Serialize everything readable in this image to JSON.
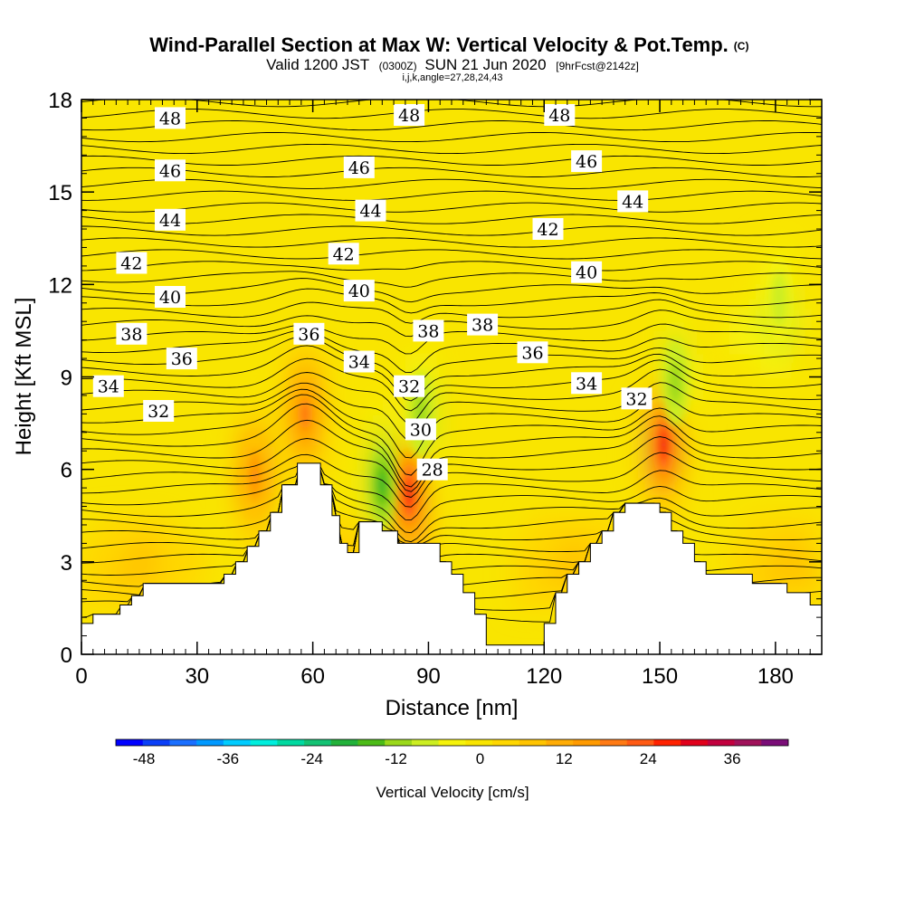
{
  "title": {
    "main": "Wind-Parallel Section at Max W: Vertical Velocity & Pot.Temp.",
    "copyright": "(C)",
    "valid_prefix": "Valid 1200 JST",
    "valid_utc": "(0300Z)",
    "valid_date": "SUN 21 Jun 2020",
    "forecast": "[9hrFcst@2142z]",
    "indices": "i,j,k,angle=27,28,24,43"
  },
  "chart_data": {
    "type": "heatmap",
    "xlabel": "Distance [nm]",
    "ylabel": "Height [Kft MSL]",
    "xlim": [
      0,
      192
    ],
    "ylim": [
      0,
      18
    ],
    "xticks": [
      0,
      30,
      60,
      90,
      120,
      150,
      180
    ],
    "yticks": [
      0,
      3,
      6,
      9,
      12,
      15,
      18
    ],
    "colorbar": {
      "title": "Vertical Velocity [cm/s]",
      "min": -52,
      "max": 44,
      "step": 4,
      "tick_values": [
        -48,
        -36,
        -24,
        -12,
        0,
        12,
        24,
        36
      ],
      "colors": [
        "#0000ff",
        "#0b3ff7",
        "#1a6fff",
        "#0099ff",
        "#00ccff",
        "#00eedd",
        "#00d9a0",
        "#13c273",
        "#22b13a",
        "#4cbb17",
        "#9bd81a",
        "#ccee22",
        "#f6f30b",
        "#f9e500",
        "#ffd700",
        "#ffc400",
        "#ffac05",
        "#ff9a00",
        "#ff7a14",
        "#ff5a14",
        "#ff2200",
        "#e1001b",
        "#c2003e",
        "#a0125a",
        "#7a0d77"
      ]
    },
    "terrain": [
      [
        0,
        1.0
      ],
      [
        3,
        1.0
      ],
      [
        3,
        1.3
      ],
      [
        10,
        1.3
      ],
      [
        10,
        1.6
      ],
      [
        13,
        1.6
      ],
      [
        13,
        1.9
      ],
      [
        16,
        1.9
      ],
      [
        16,
        2.3
      ],
      [
        37,
        2.3
      ],
      [
        37,
        2.6
      ],
      [
        40,
        2.6
      ],
      [
        40,
        3.0
      ],
      [
        43,
        3.0
      ],
      [
        43,
        3.5
      ],
      [
        46,
        3.5
      ],
      [
        46,
        4.0
      ],
      [
        49,
        4.0
      ],
      [
        49,
        4.6
      ],
      [
        52,
        4.6
      ],
      [
        52,
        5.5
      ],
      [
        56,
        5.5
      ],
      [
        56,
        6.2
      ],
      [
        62,
        6.2
      ],
      [
        62,
        5.5
      ],
      [
        65,
        5.5
      ],
      [
        65,
        4.5
      ],
      [
        67,
        4.5
      ],
      [
        67,
        3.6
      ],
      [
        69,
        3.6
      ],
      [
        69,
        3.3
      ],
      [
        72,
        3.3
      ],
      [
        72,
        4.3
      ],
      [
        78,
        4.3
      ],
      [
        78,
        4.0
      ],
      [
        82,
        4.0
      ],
      [
        82,
        3.6
      ],
      [
        93,
        3.6
      ],
      [
        93,
        3.0
      ],
      [
        96,
        3.0
      ],
      [
        96,
        2.6
      ],
      [
        99,
        2.6
      ],
      [
        99,
        2.0
      ],
      [
        102,
        2.0
      ],
      [
        102,
        1.3
      ],
      [
        105,
        1.3
      ],
      [
        105,
        0.3
      ],
      [
        120,
        0.3
      ],
      [
        120,
        1.0
      ],
      [
        123,
        1.0
      ],
      [
        123,
        2.0
      ],
      [
        126,
        2.0
      ],
      [
        126,
        2.6
      ],
      [
        129,
        2.6
      ],
      [
        129,
        3.0
      ],
      [
        132,
        3.0
      ],
      [
        132,
        3.6
      ],
      [
        135,
        3.6
      ],
      [
        135,
        4.0
      ],
      [
        138,
        4.0
      ],
      [
        138,
        4.6
      ],
      [
        141,
        4.6
      ],
      [
        141,
        4.9
      ],
      [
        150,
        4.9
      ],
      [
        150,
        4.6
      ],
      [
        153,
        4.6
      ],
      [
        153,
        4.0
      ],
      [
        156,
        4.0
      ],
      [
        156,
        3.6
      ],
      [
        159,
        3.6
      ],
      [
        159,
        3.0
      ],
      [
        162,
        3.0
      ],
      [
        162,
        2.6
      ],
      [
        174,
        2.6
      ],
      [
        174,
        2.3
      ],
      [
        183,
        2.3
      ],
      [
        183,
        2.0
      ],
      [
        189,
        2.0
      ],
      [
        189,
        1.6
      ],
      [
        192,
        1.6
      ]
    ],
    "vertical_velocity_features": [
      {
        "x": 45,
        "y": 5.8,
        "peak": 24
      },
      {
        "x": 58,
        "y": 7.8,
        "peak": 28
      },
      {
        "x": 85,
        "y": 5.2,
        "peak": 36
      },
      {
        "x": 151,
        "y": 6.8,
        "peak": 40
      },
      {
        "x": 78,
        "y": 5.5,
        "peak": -20
      },
      {
        "x": 88,
        "y": 7.8,
        "peak": -12
      },
      {
        "x": 154,
        "y": 8.8,
        "peak": -12
      },
      {
        "x": 181,
        "y": 11.5,
        "peak": -8
      }
    ],
    "theta_labels": [
      {
        "text": "48",
        "x": 23,
        "y": 17.4
      },
      {
        "text": "48",
        "x": 85,
        "y": 17.5
      },
      {
        "text": "48",
        "x": 124,
        "y": 17.5
      },
      {
        "text": "46",
        "x": 23,
        "y": 15.7
      },
      {
        "text": "46",
        "x": 72,
        "y": 15.8
      },
      {
        "text": "46",
        "x": 131,
        "y": 16.0
      },
      {
        "text": "44",
        "x": 23,
        "y": 14.1
      },
      {
        "text": "44",
        "x": 75,
        "y": 14.4
      },
      {
        "text": "44",
        "x": 143,
        "y": 14.7
      },
      {
        "text": "42",
        "x": 13,
        "y": 12.7
      },
      {
        "text": "42",
        "x": 68,
        "y": 13.0
      },
      {
        "text": "42",
        "x": 121,
        "y": 13.8
      },
      {
        "text": "40",
        "x": 23,
        "y": 11.6
      },
      {
        "text": "40",
        "x": 72,
        "y": 11.8
      },
      {
        "text": "40",
        "x": 131,
        "y": 12.4
      },
      {
        "text": "38",
        "x": 13,
        "y": 10.4
      },
      {
        "text": "38",
        "x": 90,
        "y": 10.5
      },
      {
        "text": "38",
        "x": 104,
        "y": 10.7
      },
      {
        "text": "36",
        "x": 26,
        "y": 9.6
      },
      {
        "text": "36",
        "x": 59,
        "y": 10.4
      },
      {
        "text": "36",
        "x": 117,
        "y": 9.8
      },
      {
        "text": "34",
        "x": 7,
        "y": 8.7
      },
      {
        "text": "34",
        "x": 72,
        "y": 9.5
      },
      {
        "text": "34",
        "x": 131,
        "y": 8.8
      },
      {
        "text": "32",
        "x": 20,
        "y": 7.9
      },
      {
        "text": "32",
        "x": 85,
        "y": 8.7
      },
      {
        "text": "32",
        "x": 144,
        "y": 8.3
      },
      {
        "text": "30",
        "x": 88,
        "y": 7.3
      },
      {
        "text": "28",
        "x": 91,
        "y": 6.0
      }
    ]
  }
}
